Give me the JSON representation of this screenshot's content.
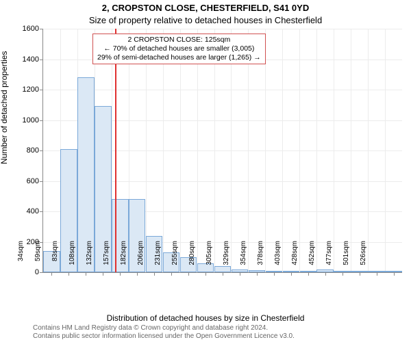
{
  "title_main": "2, CROPSTON CLOSE, CHESTERFIELD, S41 0YD",
  "title_sub": "Size of property relative to detached houses in Chesterfield",
  "y_label": "Number of detached properties",
  "x_label": "Distribution of detached houses by size in Chesterfield",
  "attribution_line1": "Contains HM Land Registry data © Crown copyright and database right 2024.",
  "attribution_line2": "Contains public sector information licensed under the Open Government Licence v3.0.",
  "chart": {
    "type": "histogram",
    "background_color": "#ffffff",
    "grid_color": "#ececec",
    "axis_color": "#888888",
    "bar_fill": "#dbe8f5",
    "bar_stroke": "#7aa8d8",
    "reference_line_color": "#e03030",
    "annotation_border": "#d05050",
    "text_color": "#000000",
    "attribution_color": "#666666",
    "ylim": [
      0,
      1600
    ],
    "ytick_step": 200,
    "yticks": [
      0,
      200,
      400,
      600,
      800,
      1000,
      1200,
      1400,
      1600
    ],
    "x_categories": [
      "34sqm",
      "59sqm",
      "83sqm",
      "108sqm",
      "132sqm",
      "157sqm",
      "182sqm",
      "206sqm",
      "231sqm",
      "255sqm",
      "280sqm",
      "305sqm",
      "329sqm",
      "354sqm",
      "378sqm",
      "403sqm",
      "428sqm",
      "452sqm",
      "477sqm",
      "501sqm",
      "526sqm"
    ],
    "values": [
      140,
      810,
      1280,
      1090,
      480,
      480,
      240,
      130,
      100,
      60,
      40,
      20,
      15,
      10,
      8,
      6,
      18,
      4,
      3,
      2,
      2
    ],
    "reference_x_index": 3.7,
    "annotation": {
      "line1": "2 CROPSTON CLOSE: 125sqm",
      "line2": "← 70% of detached houses are smaller (3,005)",
      "line3": "29% of semi-detached houses are larger (1,265) →"
    },
    "title_fontsize": 13,
    "label_fontsize": 12,
    "tick_fontsize_y": 11,
    "tick_fontsize_x": 10,
    "annotation_fontsize": 10.5,
    "attribution_fontsize": 10
  }
}
